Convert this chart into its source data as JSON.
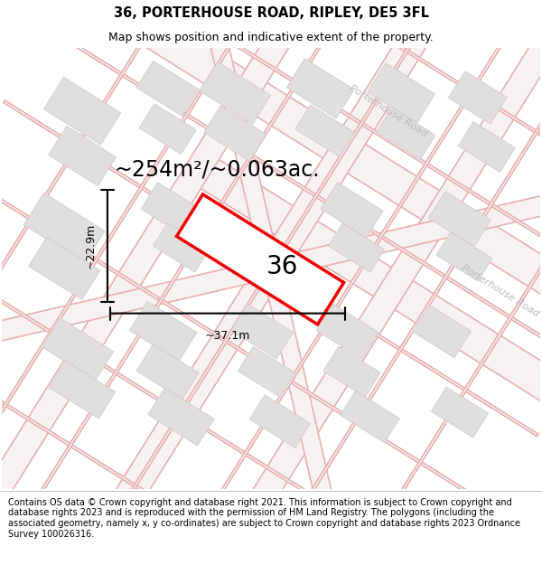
{
  "title": "36, PORTERHOUSE ROAD, RIPLEY, DE5 3FL",
  "subtitle": "Map shows position and indicative extent of the property.",
  "footer": "Contains OS data © Crown copyright and database right 2021. This information is subject to Crown copyright and database rights 2023 and is reproduced with the permission of HM Land Registry. The polygons (including the associated geometry, namely x, y co-ordinates) are subject to Crown copyright and database rights 2023 Ordnance Survey 100026316.",
  "map_bg": "#f7f2f2",
  "road_outline_color": "#e8b0b0",
  "road_fill_color": "#f7f2f2",
  "building_color": "#e0dede",
  "building_edge": "#d0c8c8",
  "highlight_color": "#ee0000",
  "area_text": "~254m²/~0.063ac.",
  "width_text": "~37.1m",
  "height_text": "~22.9m",
  "number_text": "36",
  "road_label_top": "Porterhouse Road",
  "road_label_right": "Porterhouse Road",
  "title_fontsize": 10.5,
  "subtitle_fontsize": 9,
  "footer_fontsize": 7,
  "area_fontsize": 17,
  "measure_fontsize": 9,
  "number_fontsize": 20,
  "road_label_fontsize": 8
}
